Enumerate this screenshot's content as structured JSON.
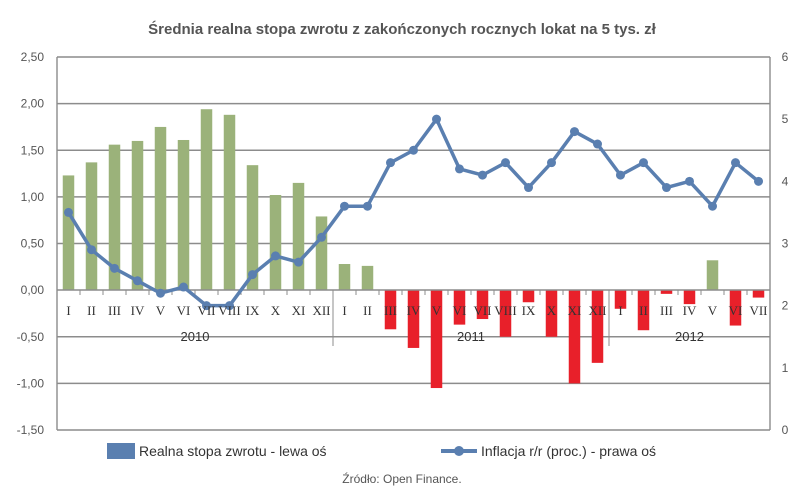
{
  "chart_data": {
    "type": "bar",
    "title": "Średnia realna stopa zwrotu z zakończonych rocznych lokat na 5 tys. zł",
    "source": "Źródło: Open Finance.",
    "categories": [
      "I",
      "II",
      "III",
      "IV",
      "V",
      "VI",
      "VII",
      "VIII",
      "IX",
      "X",
      "XI",
      "XII",
      "I",
      "II",
      "III",
      "IV",
      "V",
      "VI",
      "VII",
      "VIII",
      "IX",
      "X",
      "XI",
      "XII",
      "I",
      "II",
      "III",
      "IV",
      "V",
      "VI",
      "VII"
    ],
    "years": [
      {
        "label": "2010",
        "start": 0,
        "count": 12
      },
      {
        "label": "2011",
        "start": 12,
        "count": 12
      },
      {
        "label": "2012",
        "start": 24,
        "count": 7
      }
    ],
    "series": [
      {
        "name": "Realna stopa zwrotu - lewa oś",
        "type": "bar",
        "axis": "left",
        "positive_color": "#9bb27a",
        "negative_color": "#e8202a",
        "values": [
          1.23,
          1.37,
          1.56,
          1.6,
          1.75,
          1.61,
          1.94,
          1.88,
          1.34,
          1.02,
          1.15,
          0.79,
          0.28,
          0.26,
          -0.42,
          -0.62,
          -1.05,
          -0.37,
          -0.31,
          -0.5,
          -0.13,
          -0.5,
          -1.0,
          -0.78,
          -0.2,
          -0.43,
          -0.04,
          -0.15,
          0.32,
          -0.38,
          -0.08
        ]
      },
      {
        "name": "Inflacja r/r (proc.) - prawa oś",
        "type": "line",
        "axis": "right",
        "color": "#5a7fb0",
        "values": [
          3.5,
          2.9,
          2.6,
          2.4,
          2.2,
          2.3,
          2.0,
          2.0,
          2.5,
          2.8,
          2.7,
          3.1,
          3.6,
          3.6,
          4.3,
          4.5,
          5.0,
          4.2,
          4.1,
          4.3,
          3.9,
          4.3,
          4.8,
          4.6,
          4.1,
          4.3,
          3.9,
          4.0,
          3.6,
          4.3,
          4.0
        ]
      }
    ],
    "y_left": {
      "ylim": [
        -1.5,
        2.5
      ],
      "ticks": [
        "-1,50",
        "-1,00",
        "-0,50",
        "0,00",
        "0,50",
        "1,00",
        "1,50",
        "2,00",
        "2,50"
      ]
    },
    "y_right": {
      "ylim": [
        0,
        6
      ],
      "ticks": [
        "0",
        "1",
        "2",
        "3",
        "4",
        "5",
        "6"
      ]
    },
    "grid": true,
    "legend_position": "bottom",
    "legend_bar_color": "#5a7fb0"
  }
}
